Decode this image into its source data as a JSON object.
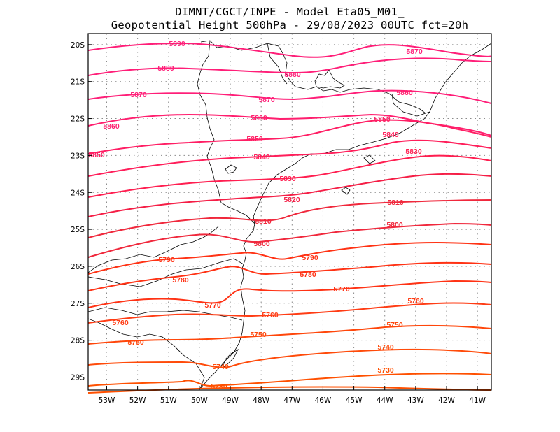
{
  "header": {
    "line1": "DIMNT/CGCT/INPE -  Model Eta05_M01_",
    "line2": "Geopotential Height 500hPa -  29/08/2023 00UTC fct=20h"
  },
  "map": {
    "lon_range": [
      -53.6,
      -40.55
    ],
    "lat_range": [
      -29.35,
      -19.7
    ],
    "x_ticks": [
      "53W",
      "52W",
      "51W",
      "50W",
      "49W",
      "48W",
      "47W",
      "46W",
      "45W",
      "44W",
      "43W",
      "42W",
      "41W"
    ],
    "x_tick_values": [
      -53,
      -52,
      -51,
      -50,
      -49,
      -48,
      -47,
      -46,
      -45,
      -44,
      -43,
      -42,
      -41
    ],
    "y_ticks": [
      "20S",
      "21S",
      "22S",
      "23S",
      "24S",
      "25S",
      "26S",
      "27S",
      "28S",
      "29S"
    ],
    "y_tick_values": [
      -20,
      -21,
      -22,
      -23,
      -24,
      -25,
      -26,
      -27,
      -28,
      -29
    ],
    "contour_labels": [
      {
        "text": "5890",
        "color": "#ff1e78"
      },
      {
        "text": "5880",
        "color": "#ff1e78"
      },
      {
        "text": "5880",
        "color": "#ff1e78"
      },
      {
        "text": "5870",
        "color": "#ff1e78"
      },
      {
        "text": "5870",
        "color": "#ff1e78"
      },
      {
        "text": "5870",
        "color": "#ff1e78"
      },
      {
        "text": "5860",
        "color": "#ff1e6e"
      },
      {
        "text": "5860",
        "color": "#ff1e6e"
      },
      {
        "text": "5860",
        "color": "#ff1e6e"
      },
      {
        "text": "5850",
        "color": "#ff1e64"
      },
      {
        "text": "5850",
        "color": "#ff1e64"
      },
      {
        "text": "5850",
        "color": "#ff1e64"
      },
      {
        "text": "5840",
        "color": "#ff1e5a"
      },
      {
        "text": "5840",
        "color": "#ff1e5a"
      },
      {
        "text": "5830",
        "color": "#ff1e50"
      },
      {
        "text": "5830",
        "color": "#ff1e50"
      },
      {
        "text": "5820",
        "color": "#f51e46"
      },
      {
        "text": "5810",
        "color": "#f0283c"
      },
      {
        "text": "5810",
        "color": "#f0283c"
      },
      {
        "text": "5800",
        "color": "#f0283c"
      },
      {
        "text": "5800",
        "color": "#f0283c"
      },
      {
        "text": "5790",
        "color": "#ff3214"
      },
      {
        "text": "5790",
        "color": "#ff3214"
      },
      {
        "text": "5780",
        "color": "#ff3214"
      },
      {
        "text": "5780",
        "color": "#ff3214"
      },
      {
        "text": "5770",
        "color": "#ff3214"
      },
      {
        "text": "5770",
        "color": "#ff3214"
      },
      {
        "text": "5760",
        "color": "#ff3c14"
      },
      {
        "text": "5760",
        "color": "#ff3c14"
      },
      {
        "text": "5760",
        "color": "#ff3c14"
      },
      {
        "text": "5750",
        "color": "#ff460a"
      },
      {
        "text": "5750",
        "color": "#ff460a"
      },
      {
        "text": "5750",
        "color": "#ff460a"
      },
      {
        "text": "5740",
        "color": "#ff4b0a"
      },
      {
        "text": "5740",
        "color": "#ff4b0a"
      },
      {
        "text": "5730",
        "color": "#ff5000"
      },
      {
        "text": "5730",
        "color": "#ff5000"
      }
    ]
  }
}
